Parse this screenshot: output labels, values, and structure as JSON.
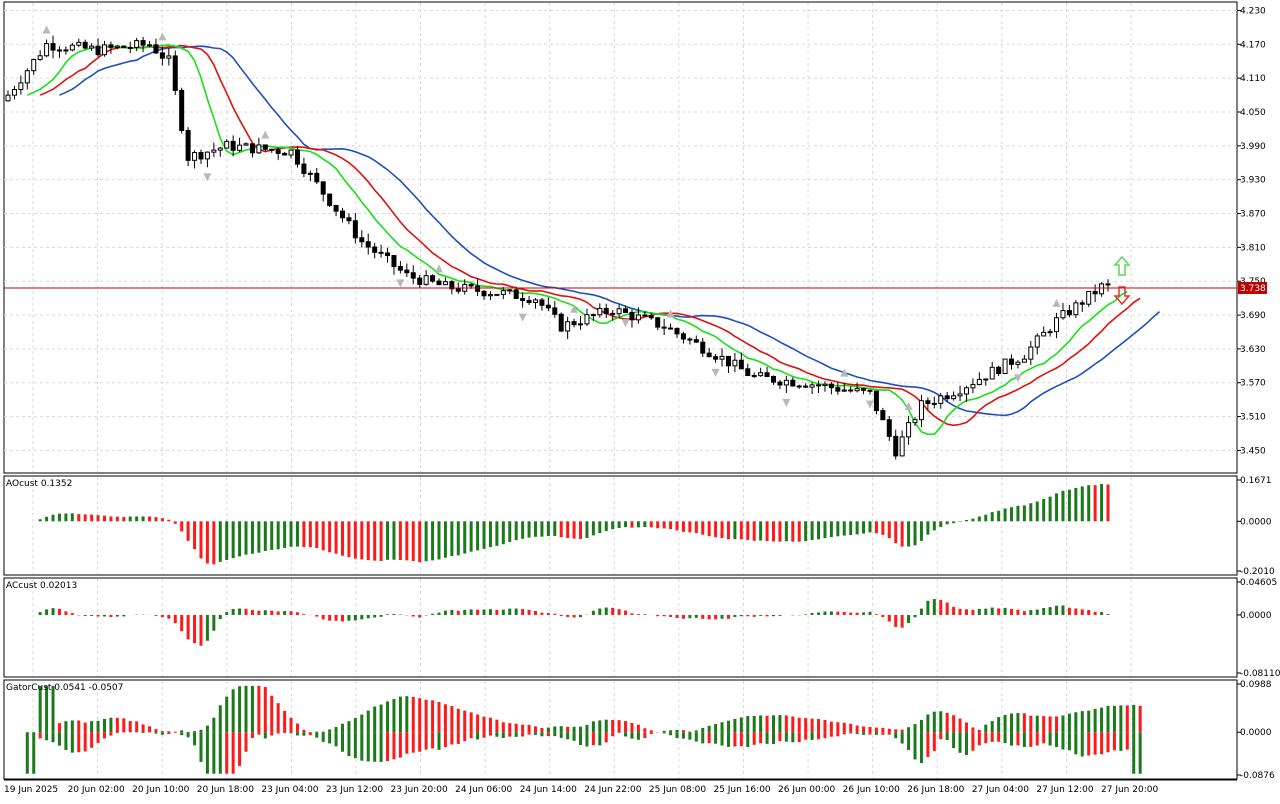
{
  "chart_data": {
    "type": "candlestick",
    "current_price": {
      "value": 3.738,
      "label": "3.738"
    },
    "price_axis": {
      "ticks": [
        "4.230",
        "4.170",
        "4.110",
        "4.050",
        "3.990",
        "3.930",
        "3.870",
        "3.810",
        "3.750",
        "3.690",
        "3.630",
        "3.570",
        "3.510",
        "3.450"
      ],
      "ylim": [
        3.41,
        4.245
      ]
    },
    "x_axis": {
      "ticks": [
        "19 Jun 2025",
        "20 Jun 02:00",
        "20 Jun 10:00",
        "20 Jun 18:00",
        "23 Jun 04:00",
        "23 Jun 12:00",
        "23 Jun 20:00",
        "24 Jun 06:00",
        "24 Jun 14:00",
        "24 Jun 22:00",
        "25 Jun 08:00",
        "25 Jun 16:00",
        "26 Jun 00:00",
        "26 Jun 10:00",
        "26 Jun 18:00",
        "27 Jun 04:00",
        "27 Jun 12:00",
        "27 Jun 20:00"
      ]
    },
    "signals": {
      "buy_arrow": "up-arrow-icon",
      "sell_arrow": "down-arrow-icon",
      "buy_color": "#5cd65c",
      "sell_color": "#e03030"
    },
    "colors": {
      "jaw": "#1f4fbf",
      "teeth": "#e01010",
      "lips": "#17e017",
      "up": "#1a7a1a",
      "down": "#ff1a1a",
      "price_line": "#c00000"
    },
    "panels": [
      {
        "id": "ao",
        "label": "AOcust 0.1352",
        "ticks": [
          "0.1671",
          "0.0000",
          "-0.2010"
        ]
      },
      {
        "id": "ac",
        "label": "ACcust 0.02013",
        "ticks": [
          "0.04605",
          "0.0000",
          "-0.08110"
        ]
      },
      {
        "id": "gator",
        "label": "GatorCust 0.0541 -0.0507",
        "ticks": [
          "0.0988",
          "0.0000",
          "-0.0876"
        ]
      }
    ]
  }
}
